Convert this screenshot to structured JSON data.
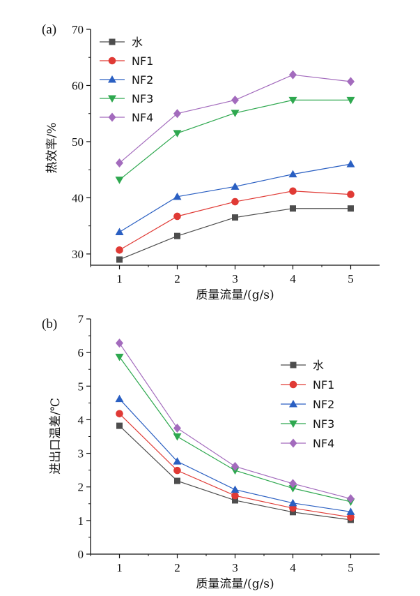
{
  "chart_data": [
    {
      "type": "line",
      "panel_label": "(a)",
      "xlabel": "质量流量/(g/s)",
      "ylabel": "热效率/%",
      "x": [
        1,
        2,
        3,
        4,
        5
      ],
      "xticks": [
        "1",
        "2",
        "3",
        "4",
        "5"
      ],
      "ylim": [
        28,
        70
      ],
      "yticks": [
        "30",
        "40",
        "50",
        "60",
        "70"
      ],
      "legend_position": "top-left",
      "series": [
        {
          "name": "水",
          "values": [
            29.0,
            33.2,
            36.5,
            38.1,
            38.1
          ],
          "color": "#4d4d4d",
          "marker": "square"
        },
        {
          "name": "NF1",
          "values": [
            30.7,
            36.7,
            39.3,
            41.2,
            40.6
          ],
          "color": "#e03a35",
          "marker": "circle"
        },
        {
          "name": "NF2",
          "values": [
            33.9,
            40.2,
            42.0,
            44.2,
            46.0
          ],
          "color": "#2a5fc2",
          "marker": "triangle-up"
        },
        {
          "name": "NF3",
          "values": [
            43.2,
            51.5,
            55.1,
            57.4,
            57.4
          ],
          "color": "#2ea84f",
          "marker": "triangle-down"
        },
        {
          "name": "NF4",
          "values": [
            46.2,
            55.0,
            57.4,
            61.9,
            60.7
          ],
          "color": "#a36bbd",
          "marker": "diamond"
        }
      ]
    },
    {
      "type": "line",
      "panel_label": "(b)",
      "xlabel": "质量流量/(g/s)",
      "ylabel": "进出口温差/℃",
      "x": [
        1,
        2,
        3,
        4,
        5
      ],
      "xticks": [
        "1",
        "2",
        "3",
        "4",
        "5"
      ],
      "ylim": [
        0,
        7
      ],
      "yticks": [
        "0",
        "1",
        "2",
        "3",
        "4",
        "5",
        "6",
        "7"
      ],
      "legend_position": "top-right",
      "series": [
        {
          "name": "水",
          "values": [
            3.82,
            2.18,
            1.6,
            1.25,
            1.02
          ],
          "color": "#4d4d4d",
          "marker": "square"
        },
        {
          "name": "NF1",
          "values": [
            4.18,
            2.49,
            1.74,
            1.37,
            1.1
          ],
          "color": "#e03a35",
          "marker": "circle"
        },
        {
          "name": "NF2",
          "values": [
            4.62,
            2.76,
            1.92,
            1.52,
            1.26
          ],
          "color": "#2a5fc2",
          "marker": "triangle-up"
        },
        {
          "name": "NF3",
          "values": [
            5.87,
            3.5,
            2.49,
            1.96,
            1.56
          ],
          "color": "#2ea84f",
          "marker": "triangle-down"
        },
        {
          "name": "NF4",
          "values": [
            6.28,
            3.75,
            2.61,
            2.1,
            1.65
          ],
          "color": "#a36bbd",
          "marker": "diamond"
        }
      ]
    }
  ]
}
